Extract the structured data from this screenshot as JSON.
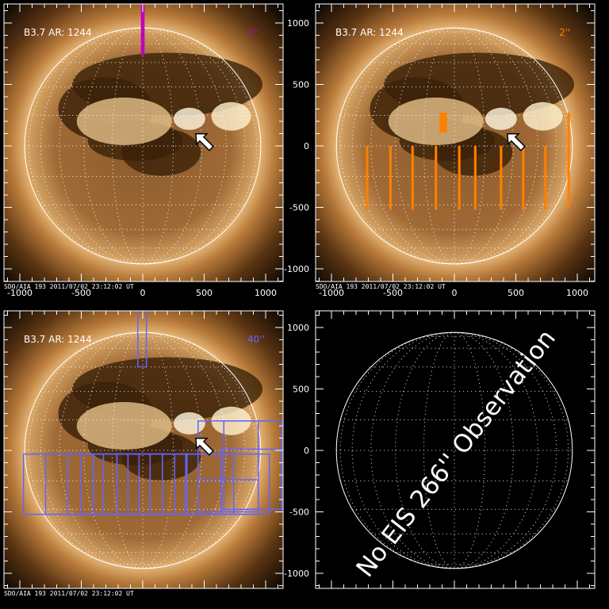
{
  "footer_text": "SDO/AIA 193  2011/07/02 23:12:02 UT",
  "x_ticks": [
    "-1000",
    "-500",
    "0",
    "500",
    "1000"
  ],
  "y_ticks": [
    "1000",
    "500",
    "0",
    "-500",
    "-1000"
  ],
  "colors": {
    "slit_1": "#c000c0",
    "slit_2": "#ff7f00",
    "slit_40": "#6464ff",
    "limb": "#ffffff"
  },
  "panels": [
    {
      "label": "B3.7 AR: 1244",
      "slit": "1''",
      "has_image": true,
      "show_yticks": false,
      "rasters": [
        [
          -15,
          740,
          15,
          1200
        ]
      ]
    },
    {
      "label": "B3.7 AR: 1244",
      "slit": "2''",
      "has_image": true,
      "show_yticks": true,
      "rasters": [
        [
          -120,
          110,
          -60,
          270
        ],
        [
          -720,
          -520,
          -700,
          0
        ],
        [
          -530,
          -520,
          -510,
          0
        ],
        [
          -350,
          -520,
          -330,
          0
        ],
        [
          -160,
          -520,
          -140,
          0
        ],
        [
          30,
          -520,
          50,
          0
        ],
        [
          160,
          -520,
          180,
          0
        ],
        [
          370,
          -520,
          390,
          0
        ],
        [
          550,
          -520,
          570,
          0
        ],
        [
          730,
          -520,
          750,
          0
        ],
        [
          920,
          -500,
          940,
          270
        ]
      ]
    },
    {
      "label": "B3.7 AR: 1244",
      "slit": "40''",
      "has_image": true,
      "show_yticks": false,
      "rasters": [
        [
          -40,
          680,
          30,
          1210
        ],
        [
          -970,
          -520,
          -400,
          -30
        ],
        [
          -790,
          -520,
          -210,
          -30
        ],
        [
          -610,
          -520,
          -30,
          -30
        ],
        [
          -500,
          -520,
          60,
          -30
        ],
        [
          -400,
          -520,
          160,
          -30
        ],
        [
          -320,
          -520,
          260,
          -30
        ],
        [
          -210,
          -520,
          360,
          -30
        ],
        [
          -120,
          -520,
          450,
          -30
        ],
        [
          60,
          -520,
          640,
          -30
        ],
        [
          160,
          -520,
          740,
          -30
        ],
        [
          350,
          -520,
          940,
          -30
        ],
        [
          450,
          -520,
          1030,
          -30
        ],
        [
          450,
          -240,
          940,
          240
        ],
        [
          660,
          -480,
          1130,
          240
        ],
        [
          640,
          -480,
          1130,
          10
        ],
        [
          450,
          -500,
          940,
          -240
        ]
      ]
    },
    {
      "label": "",
      "slit": "",
      "has_image": false,
      "show_yticks": true,
      "message": "No EIS 266'' Observation",
      "rasters": []
    }
  ]
}
